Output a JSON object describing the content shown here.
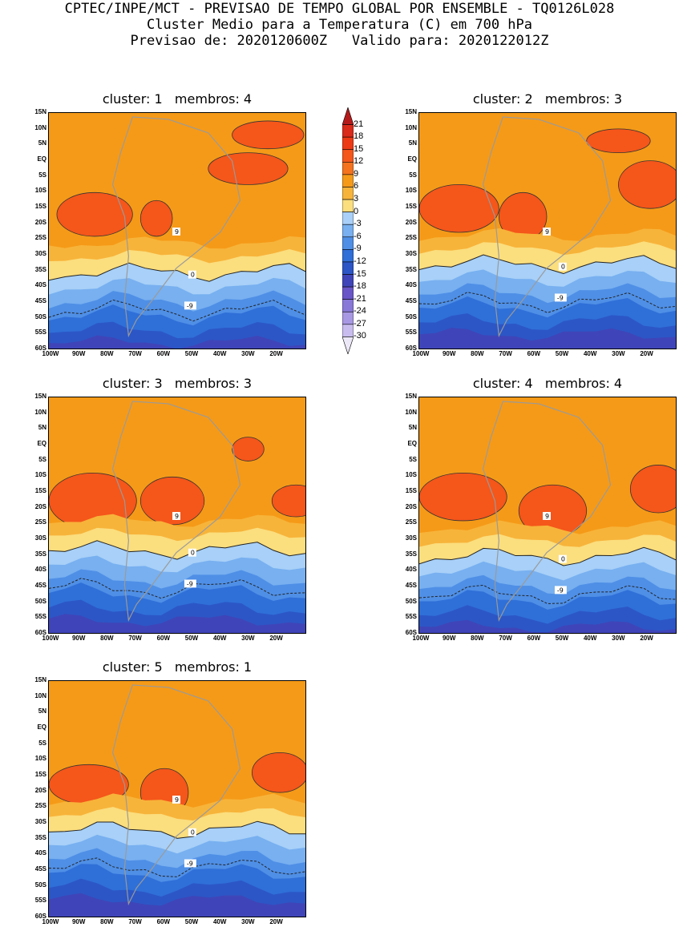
{
  "header": {
    "line1": "CPTEC/INPE/MCT - PREVISAO DE TEMPO GLOBAL POR ENSEMBLE - TQ0126L028",
    "line2": "Cluster Medio para a Temperatura (C) em 700 hPa",
    "line3": "Previsao de: 2020120600Z   Valido para: 2020122012Z"
  },
  "axes": {
    "lat_labels": [
      "15N",
      "10N",
      "5N",
      "EQ",
      "5S",
      "10S",
      "15S",
      "20S",
      "25S",
      "30S",
      "35S",
      "40S",
      "45S",
      "50S",
      "55S",
      "60S"
    ],
    "lon_labels": [
      "100W",
      "90W",
      "80W",
      "70W",
      "60W",
      "50W",
      "40W",
      "30W",
      "20W"
    ]
  },
  "colorbar": {
    "labels": [
      "21",
      "18",
      "15",
      "12",
      "9",
      "6",
      "3",
      "0",
      "-3",
      "-6",
      "-9",
      "-12",
      "-15",
      "-18",
      "-21",
      "-24",
      "-27",
      "-30"
    ],
    "colors": [
      "#b51a1a",
      "#d92a1a",
      "#ee3a14",
      "#f5561a",
      "#f4731c",
      "#f59a18",
      "#f7b43a",
      "#fbde7e",
      "#a8d0f8",
      "#78b0f0",
      "#4f8fe6",
      "#2f6fd8",
      "#2c56c6",
      "#3f45b8",
      "#6a55c8",
      "#8a78d8",
      "#a898e4",
      "#c8bcef",
      "#ece8f8"
    ]
  },
  "clusters": [
    {
      "title": "cluster: 1   membros: 4"
    },
    {
      "title": "cluster: 2   membros: 3"
    },
    {
      "title": "cluster: 3   membros: 3"
    },
    {
      "title": "cluster: 4   membros: 4"
    },
    {
      "title": "cluster: 5   membros: 1"
    }
  ],
  "contour_labels": {
    "warm": "9",
    "zero": "0",
    "cold": "-9"
  }
}
